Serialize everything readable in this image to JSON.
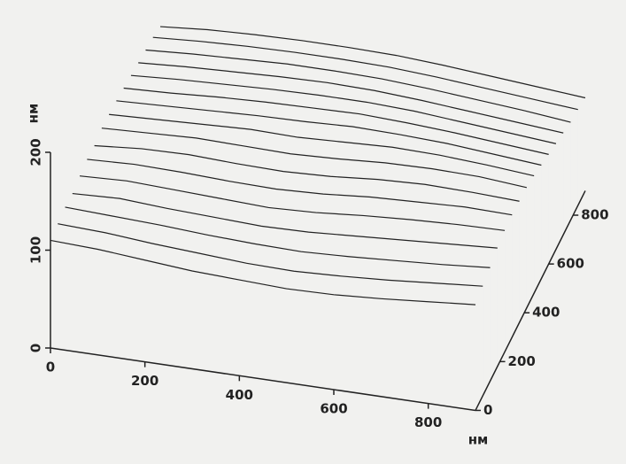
{
  "chart_data": {
    "type": "surface3d",
    "x_label": "нм",
    "z_label": "нм",
    "xlim": [
      0,
      900
    ],
    "ylim": [
      0,
      900
    ],
    "zlim": [
      0,
      200
    ],
    "xticks": [
      0,
      200,
      400,
      600,
      800
    ],
    "yticks": [
      0,
      200,
      400,
      600,
      800
    ],
    "zticks": [
      0,
      100,
      200
    ],
    "x": [
      0,
      100,
      200,
      300,
      400,
      500,
      600,
      700,
      800,
      900
    ],
    "profiles": [
      {
        "y": 0,
        "z": [
          110,
          108,
          104,
          100,
          98,
          96,
          97,
          100,
          104,
          108
        ]
      },
      {
        "y": 60,
        "z": [
          112,
          110,
          106,
          103,
          100,
          99,
          101,
          104,
          108,
          112
        ]
      },
      {
        "y": 120,
        "z": [
          114,
          112,
          110,
          107,
          105,
          104,
          106,
          109,
          112,
          116
        ]
      },
      {
        "y": 180,
        "z": [
          113,
          115,
          112,
          110,
          108,
          109,
          112,
          115,
          118,
          121
        ]
      },
      {
        "y": 240,
        "z": [
          116,
          118,
          116,
          114,
          112,
          114,
          118,
          121,
          123,
          124
        ]
      },
      {
        "y": 300,
        "z": [
          118,
          120,
          119,
          117,
          116,
          118,
          122,
          124,
          126,
          125
        ]
      },
      {
        "y": 360,
        "z": [
          117,
          121,
          122,
          120,
          119,
          121,
          125,
          127,
          126,
          124
        ]
      },
      {
        "y": 420,
        "z": [
          120,
          122,
          124,
          123,
          122,
          124,
          127,
          128,
          127,
          123
        ]
      },
      {
        "y": 480,
        "z": [
          119,
          121,
          123,
          125,
          124,
          126,
          128,
          127,
          124,
          120
        ]
      },
      {
        "y": 540,
        "z": [
          118,
          120,
          122,
          124,
          125,
          127,
          126,
          124,
          120,
          116
        ]
      },
      {
        "y": 600,
        "z": [
          116,
          118,
          121,
          123,
          124,
          125,
          123,
          120,
          116,
          112
        ]
      },
      {
        "y": 660,
        "z": [
          114,
          117,
          119,
          121,
          122,
          122,
          120,
          116,
          112,
          108
        ]
      },
      {
        "y": 720,
        "z": [
          112,
          115,
          117,
          119,
          120,
          119,
          116,
          112,
          108,
          104
        ]
      },
      {
        "y": 780,
        "z": [
          110,
          113,
          115,
          117,
          117,
          116,
          113,
          109,
          105,
          100
        ]
      },
      {
        "y": 840,
        "z": [
          108,
          111,
          113,
          114,
          114,
          113,
          110,
          106,
          102,
          98
        ]
      },
      {
        "y": 900,
        "z": [
          104,
          108,
          110,
          111,
          111,
          110,
          107,
          103,
          99,
          95
        ]
      }
    ],
    "color": "#222222"
  }
}
